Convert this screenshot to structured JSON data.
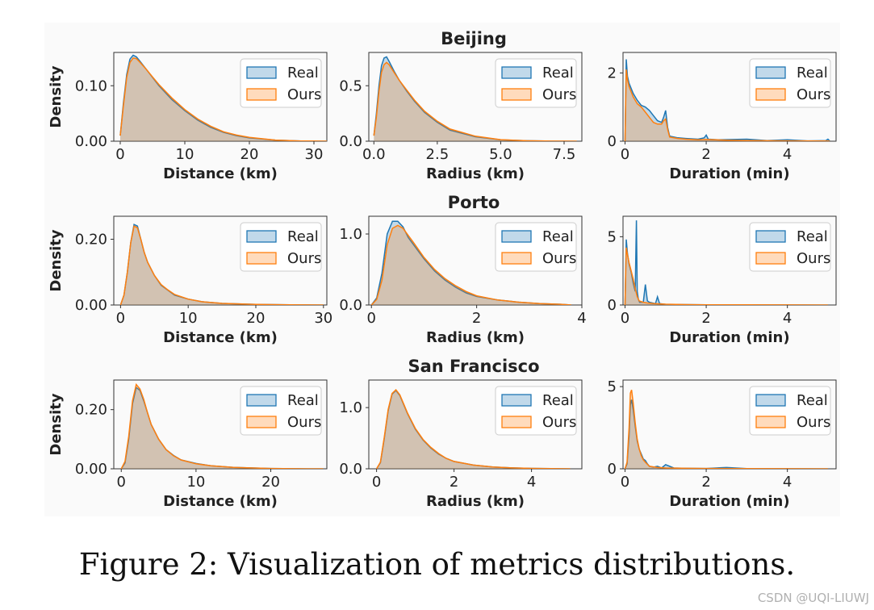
{
  "figure": {
    "caption": "Figure 2: Visualization of metrics distributions.",
    "watermark": "CSDN @UQI-LIUWJ",
    "colors": {
      "real": "#1f77b4",
      "ours": "#ff7f0e",
      "fill_overlap": "#c8b3a6",
      "axes_bg": "#fafafa"
    },
    "legend": [
      "Real",
      "Ours"
    ],
    "ylabel": "Density"
  },
  "chart_data": [
    {
      "type": "area",
      "row_title": "Beijing",
      "xlabel": "Distance (km)",
      "ylabel": "Density",
      "xlim": [
        -1,
        32
      ],
      "ylim": [
        0,
        0.16
      ],
      "xticks": [
        "0",
        "10",
        "20",
        "30"
      ],
      "xtick_values": [
        0,
        10,
        20,
        30
      ],
      "yticks": [
        "0.00",
        "0.10"
      ],
      "ytick_values": [
        0,
        0.1
      ],
      "series": [
        {
          "name": "Real",
          "x": [
            0,
            0.5,
            1,
            1.5,
            2,
            2.5,
            3,
            4,
            5,
            6,
            8,
            10,
            12,
            14,
            16,
            18,
            20,
            24,
            28,
            32
          ],
          "y": [
            0.01,
            0.07,
            0.12,
            0.148,
            0.155,
            0.152,
            0.145,
            0.13,
            0.115,
            0.1,
            0.075,
            0.055,
            0.038,
            0.025,
            0.016,
            0.01,
            0.006,
            0.002,
            0.0005,
            0
          ]
        },
        {
          "name": "Ours",
          "x": [
            0,
            0.5,
            1,
            1.5,
            2,
            2.5,
            3,
            4,
            5,
            6,
            8,
            10,
            12,
            14,
            16,
            18,
            20,
            24,
            28,
            32
          ],
          "y": [
            0.01,
            0.065,
            0.115,
            0.142,
            0.15,
            0.149,
            0.143,
            0.13,
            0.116,
            0.102,
            0.078,
            0.057,
            0.04,
            0.027,
            0.017,
            0.011,
            0.007,
            0.002,
            0.0005,
            0
          ]
        }
      ]
    },
    {
      "type": "area",
      "row_title": "",
      "xlabel": "Radius (km)",
      "ylabel": "",
      "xlim": [
        -0.2,
        8.2
      ],
      "ylim": [
        0,
        0.8
      ],
      "xticks": [
        "0.0",
        "2.5",
        "5.0",
        "7.5"
      ],
      "xtick_values": [
        0,
        2.5,
        5,
        7.5
      ],
      "yticks": [
        "0.0",
        "0.5"
      ],
      "ytick_values": [
        0,
        0.5
      ],
      "series": [
        {
          "name": "Real",
          "x": [
            0,
            0.1,
            0.2,
            0.3,
            0.4,
            0.5,
            0.6,
            0.8,
            1,
            1.3,
            1.6,
            2,
            2.5,
            3,
            4,
            5,
            6,
            7,
            8
          ],
          "y": [
            0.05,
            0.25,
            0.5,
            0.68,
            0.75,
            0.76,
            0.72,
            0.63,
            0.55,
            0.45,
            0.36,
            0.26,
            0.17,
            0.1,
            0.04,
            0.012,
            0.004,
            0.001,
            0
          ]
        },
        {
          "name": "Ours",
          "x": [
            0,
            0.1,
            0.2,
            0.3,
            0.4,
            0.5,
            0.6,
            0.8,
            1,
            1.3,
            1.6,
            2,
            2.5,
            3,
            4,
            5,
            6,
            7,
            8
          ],
          "y": [
            0.05,
            0.22,
            0.45,
            0.62,
            0.69,
            0.71,
            0.69,
            0.62,
            0.55,
            0.46,
            0.37,
            0.27,
            0.18,
            0.11,
            0.045,
            0.014,
            0.004,
            0.001,
            0
          ]
        }
      ]
    },
    {
      "type": "area",
      "row_title": "",
      "xlabel": "Duration (min)",
      "ylabel": "",
      "xlim": [
        -0.05,
        5.2
      ],
      "ylim": [
        0,
        2.6
      ],
      "xticks": [
        "0",
        "2",
        "4"
      ],
      "xtick_values": [
        0,
        2,
        4
      ],
      "yticks": [
        "0",
        "2"
      ],
      "ytick_values": [
        0,
        2
      ],
      "series": [
        {
          "name": "Real",
          "x": [
            0,
            0.03,
            0.06,
            0.1,
            0.2,
            0.3,
            0.4,
            0.5,
            0.6,
            0.7,
            0.8,
            0.9,
            0.95,
            1,
            1.05,
            1.1,
            1.3,
            1.5,
            1.8,
            1.95,
            2,
            2.05,
            2.3,
            3,
            3.5,
            4,
            4.5,
            4.95,
            5,
            5.05
          ],
          "y": [
            0,
            2.4,
            1.9,
            1.7,
            1.4,
            1.2,
            1.05,
            1.0,
            0.9,
            0.75,
            0.6,
            0.55,
            0.7,
            0.9,
            0.4,
            0.15,
            0.1,
            0.08,
            0.06,
            0.1,
            0.18,
            0.06,
            0.04,
            0.06,
            0.02,
            0.04,
            0.01,
            0.02,
            0.06,
            0
          ]
        },
        {
          "name": "Ours",
          "x": [
            0,
            0.03,
            0.06,
            0.1,
            0.2,
            0.3,
            0.4,
            0.5,
            0.6,
            0.7,
            0.8,
            0.9,
            0.95,
            1,
            1.05,
            1.1,
            1.3,
            1.5,
            1.8,
            2,
            2.5,
            3,
            4,
            5,
            5.05
          ],
          "y": [
            0,
            2.1,
            1.8,
            1.6,
            1.3,
            1.1,
            1.0,
            0.85,
            0.7,
            0.55,
            0.5,
            0.5,
            0.6,
            0.65,
            0.35,
            0.12,
            0.08,
            0.06,
            0.04,
            0.05,
            0.03,
            0.02,
            0.01,
            0.005,
            0
          ]
        }
      ]
    },
    {
      "type": "area",
      "row_title": "Porto",
      "xlabel": "Distance (km)",
      "ylabel": "Density",
      "xlim": [
        -1,
        30.5
      ],
      "ylim": [
        0,
        0.27
      ],
      "xticks": [
        "0",
        "10",
        "20",
        "30"
      ],
      "xtick_values": [
        0,
        10,
        20,
        30
      ],
      "yticks": [
        "0.00",
        "0.20"
      ],
      "ytick_values": [
        0,
        0.2
      ],
      "series": [
        {
          "name": "Real",
          "x": [
            0,
            0.5,
            1,
            1.5,
            2,
            2.5,
            3,
            3.5,
            4,
            5,
            6,
            7,
            8,
            10,
            12,
            15,
            20,
            25,
            30
          ],
          "y": [
            0,
            0.03,
            0.1,
            0.19,
            0.245,
            0.24,
            0.2,
            0.16,
            0.13,
            0.09,
            0.06,
            0.045,
            0.03,
            0.018,
            0.01,
            0.005,
            0.002,
            0.0005,
            0
          ]
        },
        {
          "name": "Ours",
          "x": [
            0,
            0.5,
            1,
            1.5,
            2,
            2.5,
            3,
            3.5,
            4,
            5,
            6,
            7,
            8,
            10,
            12,
            15,
            20,
            25,
            30
          ],
          "y": [
            0,
            0.03,
            0.1,
            0.19,
            0.24,
            0.235,
            0.2,
            0.16,
            0.13,
            0.09,
            0.062,
            0.046,
            0.032,
            0.018,
            0.01,
            0.005,
            0.002,
            0.0005,
            0
          ]
        }
      ]
    },
    {
      "type": "area",
      "row_title": "",
      "xlabel": "Radius (km)",
      "ylabel": "",
      "xlim": [
        -0.05,
        4
      ],
      "ylim": [
        0,
        1.25
      ],
      "xticks": [
        "0",
        "2",
        "4"
      ],
      "xtick_values": [
        0,
        2,
        4
      ],
      "yticks": [
        "0.0",
        "1.0"
      ],
      "ytick_values": [
        0,
        1
      ],
      "series": [
        {
          "name": "Real",
          "x": [
            0,
            0.1,
            0.2,
            0.3,
            0.4,
            0.5,
            0.6,
            0.7,
            0.8,
            1,
            1.2,
            1.4,
            1.6,
            1.8,
            2,
            2.4,
            2.8,
            3.2,
            3.6,
            3.8
          ],
          "y": [
            0,
            0.1,
            0.45,
            1.0,
            1.18,
            1.18,
            1.1,
            0.95,
            0.85,
            0.65,
            0.48,
            0.35,
            0.25,
            0.17,
            0.12,
            0.07,
            0.04,
            0.02,
            0.01,
            0
          ]
        },
        {
          "name": "Ours",
          "x": [
            0,
            0.1,
            0.2,
            0.3,
            0.4,
            0.5,
            0.6,
            0.7,
            0.8,
            1,
            1.2,
            1.4,
            1.6,
            1.8,
            2,
            2.4,
            2.8,
            3.2,
            3.6,
            3.8
          ],
          "y": [
            0,
            0.08,
            0.35,
            0.85,
            1.08,
            1.12,
            1.08,
            0.98,
            0.88,
            0.67,
            0.5,
            0.37,
            0.27,
            0.19,
            0.13,
            0.07,
            0.04,
            0.02,
            0.01,
            0
          ]
        }
      ]
    },
    {
      "type": "area",
      "row_title": "",
      "xlabel": "Duration (min)",
      "ylabel": "",
      "xlim": [
        -0.05,
        5.2
      ],
      "ylim": [
        0,
        6.5
      ],
      "xticks": [
        "0",
        "2",
        "4"
      ],
      "xtick_values": [
        0,
        2,
        4
      ],
      "yticks": [
        "0",
        "5"
      ],
      "ytick_values": [
        0,
        5
      ],
      "series": [
        {
          "name": "Real",
          "x": [
            0,
            0.03,
            0.06,
            0.1,
            0.15,
            0.2,
            0.25,
            0.28,
            0.3,
            0.33,
            0.36,
            0.45,
            0.5,
            0.55,
            0.6,
            0.75,
            0.8,
            0.85,
            1,
            1.5,
            2,
            3,
            4,
            5
          ],
          "y": [
            0,
            4.8,
            3.8,
            3.0,
            2.4,
            1.6,
            1.0,
            6.2,
            1.0,
            0.4,
            0.2,
            0.2,
            1.5,
            0.3,
            0.2,
            0.1,
            0.6,
            0.1,
            0.05,
            0.03,
            0.02,
            0.01,
            0.005,
            0
          ]
        },
        {
          "name": "Ours",
          "x": [
            0,
            0.03,
            0.06,
            0.1,
            0.15,
            0.2,
            0.25,
            0.3,
            0.35,
            0.45,
            0.55,
            0.7,
            1,
            1.5,
            2,
            3,
            4,
            5
          ],
          "y": [
            0,
            4.2,
            3.7,
            3.1,
            2.5,
            1.9,
            1.2,
            0.6,
            0.3,
            0.2,
            0.15,
            0.1,
            0.06,
            0.03,
            0.02,
            0.01,
            0.005,
            0
          ]
        }
      ]
    },
    {
      "type": "area",
      "row_title": "San Francisco",
      "xlabel": "Distance (km)",
      "ylabel": "Density",
      "xlim": [
        -1,
        27.5
      ],
      "ylim": [
        0,
        0.3
      ],
      "xticks": [
        "0",
        "10",
        "20"
      ],
      "xtick_values": [
        0,
        10,
        20
      ],
      "yticks": [
        "0.00",
        "0.20"
      ],
      "ytick_values": [
        0,
        0.2
      ],
      "series": [
        {
          "name": "Real",
          "x": [
            0,
            0.5,
            1,
            1.5,
            2,
            2.5,
            3,
            3.5,
            4,
            5,
            6,
            7,
            8,
            10,
            12,
            15,
            20,
            25,
            27
          ],
          "y": [
            0,
            0.02,
            0.1,
            0.22,
            0.275,
            0.265,
            0.23,
            0.19,
            0.15,
            0.1,
            0.065,
            0.045,
            0.03,
            0.018,
            0.01,
            0.005,
            0.001,
            0,
            0
          ]
        },
        {
          "name": "Ours",
          "x": [
            0,
            0.5,
            1,
            1.5,
            2,
            2.5,
            3,
            3.5,
            4,
            5,
            6,
            7,
            8,
            10,
            12,
            15,
            20,
            25,
            27
          ],
          "y": [
            0,
            0.025,
            0.11,
            0.23,
            0.285,
            0.27,
            0.235,
            0.19,
            0.15,
            0.1,
            0.065,
            0.044,
            0.03,
            0.017,
            0.01,
            0.005,
            0.001,
            0,
            0
          ]
        }
      ]
    },
    {
      "type": "area",
      "row_title": "",
      "xlabel": "Radius (km)",
      "ylabel": "",
      "xlim": [
        -0.2,
        5.3
      ],
      "ylim": [
        0,
        1.45
      ],
      "xticks": [
        "0",
        "2",
        "4"
      ],
      "xtick_values": [
        0,
        2,
        4
      ],
      "yticks": [
        "0.0",
        "1.0"
      ],
      "ytick_values": [
        0,
        1
      ],
      "series": [
        {
          "name": "Real",
          "x": [
            0,
            0.1,
            0.2,
            0.3,
            0.4,
            0.5,
            0.6,
            0.7,
            0.8,
            1,
            1.2,
            1.4,
            1.6,
            1.8,
            2,
            2.5,
            3,
            3.5,
            4,
            4.5,
            5
          ],
          "y": [
            0,
            0.1,
            0.5,
            0.95,
            1.22,
            1.28,
            1.2,
            1.05,
            0.9,
            0.65,
            0.47,
            0.34,
            0.24,
            0.17,
            0.12,
            0.06,
            0.03,
            0.015,
            0.007,
            0.003,
            0
          ]
        },
        {
          "name": "Ours",
          "x": [
            0,
            0.1,
            0.2,
            0.3,
            0.4,
            0.5,
            0.6,
            0.7,
            0.8,
            1,
            1.2,
            1.4,
            1.6,
            1.8,
            2,
            2.5,
            3,
            3.5,
            4,
            4.5,
            5
          ],
          "y": [
            0,
            0.11,
            0.52,
            0.97,
            1.23,
            1.29,
            1.21,
            1.06,
            0.91,
            0.66,
            0.48,
            0.35,
            0.25,
            0.17,
            0.12,
            0.06,
            0.03,
            0.015,
            0.007,
            0.003,
            0
          ]
        }
      ]
    },
    {
      "type": "area",
      "row_title": "",
      "xlabel": "Duration (min)",
      "ylabel": "",
      "xlim": [
        -0.05,
        5.2
      ],
      "ylim": [
        0,
        5.4
      ],
      "xticks": [
        "0",
        "2",
        "4"
      ],
      "xtick_values": [
        0,
        2,
        4
      ],
      "yticks": [
        "0",
        "5"
      ],
      "ytick_values": [
        0,
        5
      ],
      "series": [
        {
          "name": "Real",
          "x": [
            0,
            0.05,
            0.1,
            0.13,
            0.16,
            0.2,
            0.25,
            0.3,
            0.35,
            0.4,
            0.45,
            0.5,
            0.55,
            0.6,
            0.7,
            0.8,
            0.9,
            1,
            1.2,
            1.5,
            2,
            2.5,
            3,
            4,
            5
          ],
          "y": [
            0,
            0.3,
            2.0,
            3.9,
            4.2,
            3.6,
            2.6,
            1.7,
            1.2,
            0.9,
            0.6,
            0.5,
            0.3,
            0.15,
            0.1,
            0.15,
            0.05,
            0.25,
            0.05,
            0.03,
            0.02,
            0.08,
            0.01,
            0.005,
            0
          ]
        },
        {
          "name": "Ours",
          "x": [
            0,
            0.05,
            0.1,
            0.13,
            0.16,
            0.2,
            0.25,
            0.3,
            0.35,
            0.4,
            0.45,
            0.5,
            0.6,
            0.8,
            1,
            1.5,
            2,
            3,
            4,
            5
          ],
          "y": [
            0,
            0.4,
            2.5,
            4.6,
            4.8,
            4.0,
            2.8,
            1.8,
            1.2,
            0.8,
            0.55,
            0.4,
            0.15,
            0.08,
            0.05,
            0.03,
            0.02,
            0.01,
            0.005,
            0
          ]
        }
      ]
    }
  ]
}
